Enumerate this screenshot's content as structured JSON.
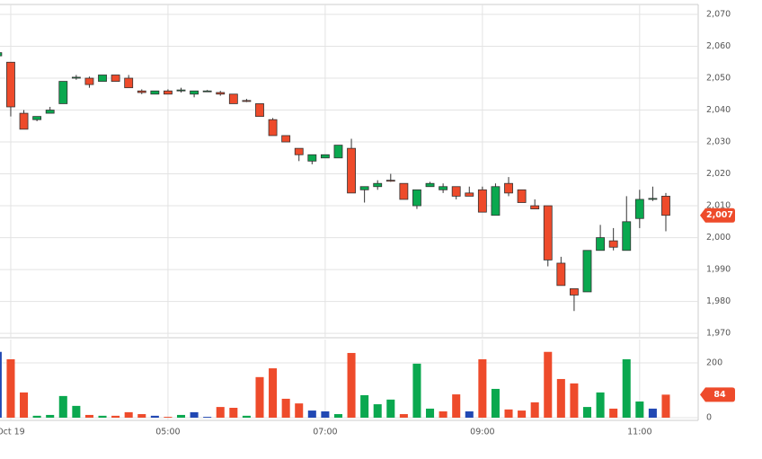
{
  "chart_data": [
    {
      "type": "candlestick",
      "x": [
        0,
        1,
        2,
        3,
        4,
        5,
        6,
        7,
        8,
        9,
        10,
        11,
        12,
        13,
        14,
        15,
        16,
        17,
        18,
        19,
        20,
        21,
        22,
        23,
        24,
        25,
        26,
        27,
        28,
        29,
        30,
        31,
        32,
        33,
        34,
        35,
        36,
        37,
        38,
        39,
        40,
        41,
        42,
        43,
        44,
        45,
        46,
        47,
        48,
        49,
        50,
        51
      ],
      "open": [
        2057,
        2055,
        2039,
        2037,
        2039,
        2042,
        2050,
        2050,
        2049,
        2051,
        2050,
        2046,
        2045,
        2046,
        2046,
        2045,
        2046,
        2045.5,
        2045,
        2043,
        2042,
        2037,
        2032,
        2028,
        2024,
        2025,
        2025,
        2028,
        2015,
        2016,
        2018,
        2017,
        2010,
        2016,
        2015,
        2016,
        2014,
        2015,
        2007,
        2017,
        2015,
        2010,
        2010,
        1992,
        1984,
        1983,
        1996,
        1999,
        1996,
        2006,
        2012,
        2013
      ],
      "high": [
        2058,
        2055,
        2040,
        2038,
        2041,
        2049,
        2051,
        2050.5,
        2051,
        2051,
        2051,
        2046.5,
        2046,
        2046.5,
        2047,
        2046,
        2046.3,
        2046,
        2045,
        2043.5,
        2042,
        2037.5,
        2032,
        2028,
        2026,
        2026,
        2029,
        2031,
        2016,
        2018,
        2020,
        2017,
        2015,
        2017.5,
        2017,
        2016,
        2016,
        2016,
        2017,
        2019,
        2015,
        2012,
        2010,
        1994,
        1984,
        1996,
        2004,
        2003,
        2013,
        2015,
        2016,
        2014
      ],
      "low": [
        2057,
        2038,
        2034,
        2036.5,
        2039,
        2042,
        2049.5,
        2047,
        2049,
        2049,
        2047,
        2045,
        2045,
        2045,
        2045.5,
        2044,
        2045.8,
        2044.5,
        2042,
        2042.5,
        2038,
        2032,
        2030,
        2024,
        2023,
        2025,
        2025,
        2014,
        2011,
        2015,
        2017.5,
        2012,
        2009,
        2016,
        2014,
        2012,
        2013,
        2008,
        2007,
        2013,
        2011,
        2009,
        1991,
        1985,
        1977,
        1983,
        1996,
        1996,
        1996,
        2003,
        2011.5,
        2002
      ],
      "close": [
        2058,
        2041,
        2034,
        2038,
        2040,
        2049,
        2050.3,
        2048,
        2051,
        2049,
        2047,
        2045.5,
        2046,
        2045,
        2046.3,
        2046,
        2046,
        2045,
        2042,
        2042.7,
        2038,
        2032,
        2030,
        2026,
        2026,
        2026,
        2029,
        2014,
        2016,
        2017,
        2017.7,
        2012,
        2015,
        2017,
        2016,
        2013,
        2013,
        2008,
        2016,
        2014,
        2011,
        2009,
        1993,
        1985,
        1982,
        1996,
        2000,
        1997,
        2005,
        2012,
        2012.3,
        2007
      ],
      "up_color": "#0aa84f",
      "down_color": "#ee4b2b",
      "xlim": [
        0.18,
        53.47
      ],
      "ylim": [
        1968.9,
        2073.1
      ],
      "yticks": [
        {
          "value": 1970,
          "label": "1,970"
        },
        {
          "value": 1980,
          "label": "1,980"
        },
        {
          "value": 1990,
          "label": "1,990"
        },
        {
          "value": 2000,
          "label": "2,000"
        },
        {
          "value": 2010,
          "label": "2,010"
        },
        {
          "value": 2020,
          "label": "2,020"
        },
        {
          "value": 2030,
          "label": "2,030"
        },
        {
          "value": 2040,
          "label": "2,040"
        },
        {
          "value": 2050,
          "label": "2,050"
        },
        {
          "value": 2060,
          "label": "2,060"
        },
        {
          "value": 2070,
          "label": "2,070"
        }
      ],
      "last_price_label": "2,007",
      "grid": true
    },
    {
      "type": "bar",
      "values": [
        240,
        213,
        92,
        7,
        10,
        79,
        43,
        10,
        7,
        7,
        20,
        13,
        7,
        3,
        10,
        20,
        3,
        39,
        36,
        7,
        148,
        180,
        69,
        52,
        26,
        23,
        13,
        236,
        82,
        49,
        66,
        13,
        197,
        33,
        23,
        85,
        23,
        213,
        105,
        30,
        26,
        56,
        240,
        141,
        125,
        39,
        92,
        33,
        213,
        59,
        33,
        84
      ],
      "colors": [
        "#2148b3",
        "#ee4b2b",
        "#ee4b2b",
        "#0aa84f",
        "#0aa84f",
        "#0aa84f",
        "#0aa84f",
        "#ee4b2b",
        "#0aa84f",
        "#ee4b2b",
        "#ee4b2b",
        "#ee4b2b",
        "#2148b3",
        "#ee4b2b",
        "#0aa84f",
        "#2148b3",
        "#2148b3",
        "#ee4b2b",
        "#ee4b2b",
        "#0aa84f",
        "#ee4b2b",
        "#ee4b2b",
        "#ee4b2b",
        "#ee4b2b",
        "#2148b3",
        "#2148b3",
        "#0aa84f",
        "#ee4b2b",
        "#0aa84f",
        "#0aa84f",
        "#0aa84f",
        "#ee4b2b",
        "#0aa84f",
        "#0aa84f",
        "#ee4b2b",
        "#ee4b2b",
        "#2148b3",
        "#ee4b2b",
        "#0aa84f",
        "#ee4b2b",
        "#ee4b2b",
        "#ee4b2b",
        "#ee4b2b",
        "#ee4b2b",
        "#ee4b2b",
        "#0aa84f",
        "#0aa84f",
        "#ee4b2b",
        "#0aa84f",
        "#0aa84f",
        "#2148b3",
        "#ee4b2b"
      ],
      "xlim": [
        0.18,
        53.47
      ],
      "xticks": [
        {
          "value": 1,
          "label": "Oct 19"
        },
        {
          "value": 13,
          "label": "05:00"
        },
        {
          "value": 25,
          "label": "07:00"
        },
        {
          "value": 37,
          "label": "09:00"
        },
        {
          "value": 49,
          "label": "11:00"
        }
      ],
      "ylim": [
        0,
        285
      ],
      "yticks": [
        0,
        200
      ],
      "grid": true
    }
  ]
}
